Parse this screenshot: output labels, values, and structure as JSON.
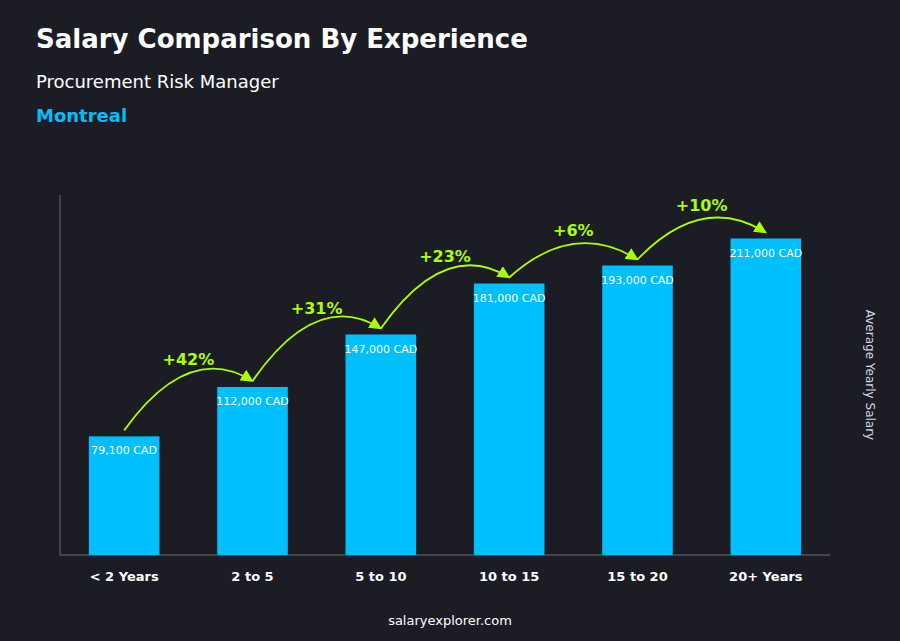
{
  "chart_data": {
    "type": "bar",
    "title": "Salary Comparison By Experience",
    "subtitle": [
      "Procurement Risk Manager",
      "Montreal"
    ],
    "categories": [
      "< 2 Years",
      "2 to 5",
      "5 to 10",
      "10 to 15",
      "15 to 20",
      "20+ Years"
    ],
    "values": [
      79100,
      112000,
      147000,
      181000,
      193000,
      211000
    ],
    "value_labels": [
      "79,100 CAD",
      "112,000 CAD",
      "147,000 CAD",
      "181,000 CAD",
      "193,000 CAD",
      "211,000 CAD"
    ],
    "data_labels": true,
    "color": "#00BFFF",
    "annotations": [
      {
        "text": "+42%",
        "color": "#AAFF00"
      },
      {
        "text": "+31%",
        "color": "#AAFF00"
      },
      {
        "text": "+23%",
        "color": "#AAFF00"
      },
      {
        "text": "+6%",
        "color": "#AAFF00"
      },
      {
        "text": "+10%",
        "color": "#AAFF00"
      }
    ],
    "y_label": "Average Yearly Salary",
    "footer": "salaryexplorer.com",
    "ylim": [
      0,
      240000
    ],
    "tick_labels": "x",
    "grid": false
  }
}
